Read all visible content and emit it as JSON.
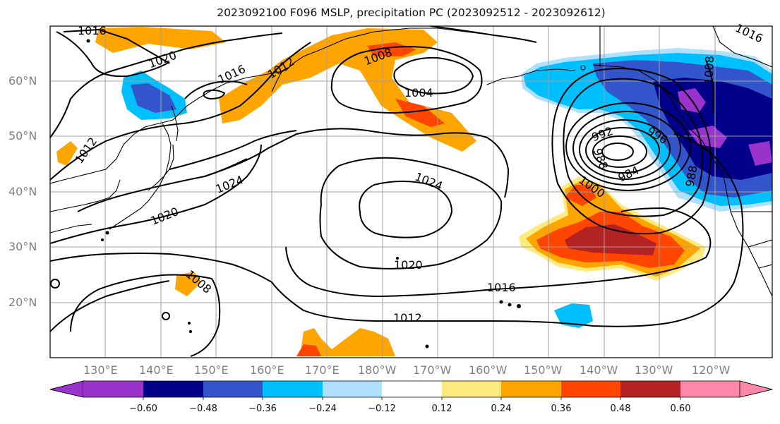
{
  "title": "2023092100 F096 MSLP, precipitation PC (2023092512 - 2023092612)",
  "lat_labels": [
    "60°N",
    "50°N",
    "40°N",
    "30°N",
    "20°N"
  ],
  "lon_labels": [
    "130°E",
    "140°E",
    "150°E",
    "160°E",
    "170°E",
    "180°W",
    "170°W",
    "160°W",
    "150°W",
    "140°W",
    "130°W",
    "120°W"
  ],
  "contour_labels": [
    "1016",
    "1020",
    "1016",
    "1012",
    "1008",
    "1004",
    "1012",
    "1024",
    "1020",
    "1024",
    "1020",
    "1016",
    "1012",
    "1008",
    "992",
    "996",
    "988",
    "984",
    "1000",
    "1008",
    "1016",
    "988"
  ],
  "colorbar": {
    "colors": [
      "#9933cc",
      "#00008b",
      "#3355cc",
      "#00bfff",
      "#b0e0ff",
      "#ffffff",
      "#ffea80",
      "#ffa500",
      "#ff4500",
      "#b22222",
      "#ff88aa"
    ],
    "ticks": [
      "−0.60",
      "−0.48",
      "−0.36",
      "−0.24",
      "−0.12",
      "0.12",
      "0.24",
      "0.36",
      "0.48",
      "0.60"
    ]
  }
}
